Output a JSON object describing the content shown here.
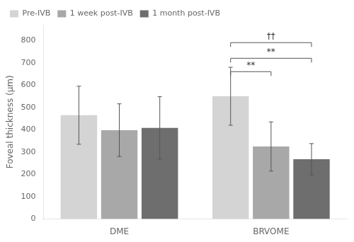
{
  "chart_data": {
    "type": "bar",
    "categories": [
      "DME",
      "BRVOME"
    ],
    "series": [
      {
        "name": "Pre-IVB",
        "color": "#d4d4d4",
        "values": [
          465,
          550
        ],
        "errors": [
          130,
          130
        ]
      },
      {
        "name": "1 week post-IVB",
        "color": "#a8a8a8",
        "values": [
          398,
          325
        ],
        "errors": [
          118,
          110
        ]
      },
      {
        "name": "1 month post-IVB",
        "color": "#6e6e6e",
        "values": [
          408,
          268
        ],
        "errors": [
          140,
          70
        ]
      }
    ],
    "ylabel": "Foveal thickness (μm)",
    "ylim": [
      0,
      870
    ],
    "yticks": [
      0,
      100,
      200,
      300,
      400,
      500,
      600,
      700,
      800
    ],
    "grid": false,
    "legend": "upper left",
    "annotations": [
      {
        "text": "**",
        "category": "BRVOME",
        "from": "Pre-IVB",
        "to": "1 week post-IVB",
        "y": 660
      },
      {
        "text": "**",
        "category": "BRVOME",
        "from": "Pre-IVB",
        "to": "1 month post-IVB",
        "y": 720
      },
      {
        "text": "††",
        "category": "BRVOME",
        "from": "Pre-IVB",
        "to": "1 month post-IVB",
        "y": 790
      }
    ]
  }
}
